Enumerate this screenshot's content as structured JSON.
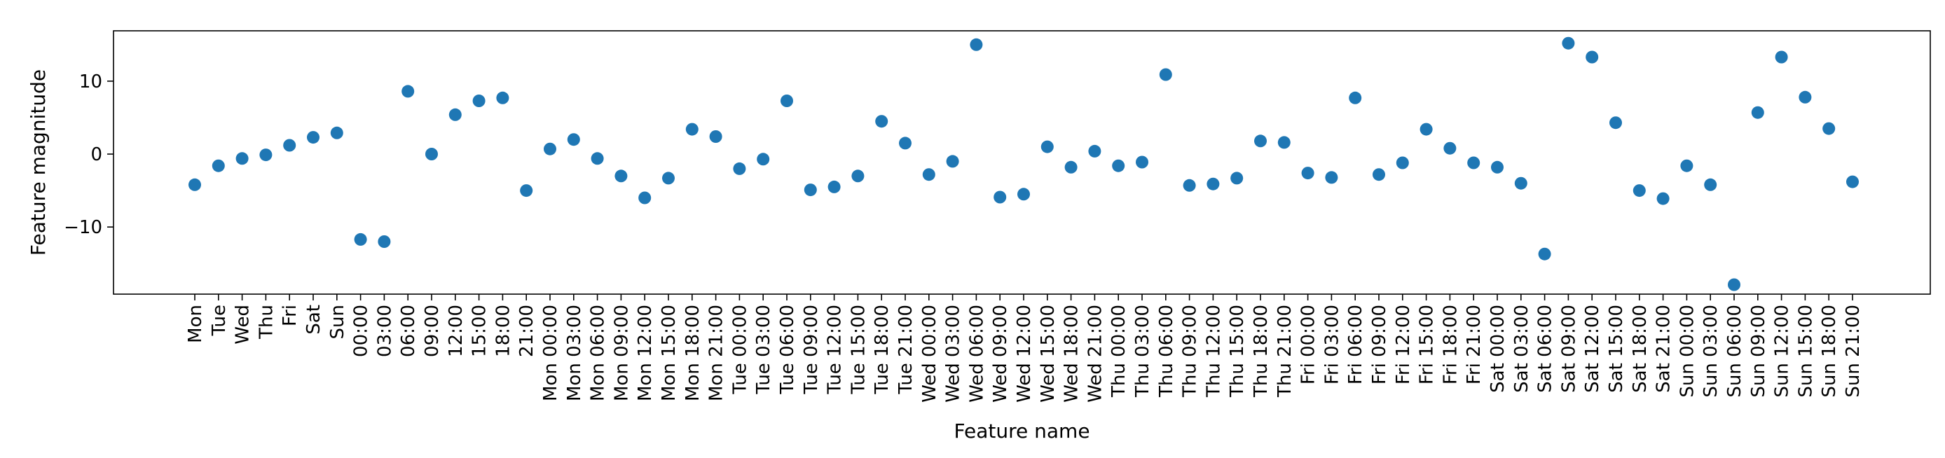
{
  "chart_data": {
    "type": "scatter",
    "xlabel": "Feature name",
    "ylabel": "Feature magnitude",
    "categories": [
      "Mon",
      "Tue",
      "Wed",
      "Thu",
      "Fri",
      "Sat",
      "Sun",
      "00:00",
      "03:00",
      "06:00",
      "09:00",
      "12:00",
      "15:00",
      "18:00",
      "21:00",
      "Mon 00:00",
      "Mon 03:00",
      "Mon 06:00",
      "Mon 09:00",
      "Mon 12:00",
      "Mon 15:00",
      "Mon 18:00",
      "Mon 21:00",
      "Tue 00:00",
      "Tue 03:00",
      "Tue 06:00",
      "Tue 09:00",
      "Tue 12:00",
      "Tue 15:00",
      "Tue 18:00",
      "Tue 21:00",
      "Wed 00:00",
      "Wed 03:00",
      "Wed 06:00",
      "Wed 09:00",
      "Wed 12:00",
      "Wed 15:00",
      "Wed 18:00",
      "Wed 21:00",
      "Thu 00:00",
      "Thu 03:00",
      "Thu 06:00",
      "Thu 09:00",
      "Thu 12:00",
      "Thu 15:00",
      "Thu 18:00",
      "Thu 21:00",
      "Fri 00:00",
      "Fri 03:00",
      "Fri 06:00",
      "Fri 09:00",
      "Fri 12:00",
      "Fri 15:00",
      "Fri 18:00",
      "Fri 21:00",
      "Sat 00:00",
      "Sat 03:00",
      "Sat 06:00",
      "Sat 09:00",
      "Sat 12:00",
      "Sat 15:00",
      "Sat 18:00",
      "Sat 21:00",
      "Sun 00:00",
      "Sun 03:00",
      "Sun 06:00",
      "Sun 09:00",
      "Sun 12:00",
      "Sun 15:00",
      "Sun 18:00",
      "Sun 21:00"
    ],
    "values": [
      -4.2,
      -1.6,
      -0.6,
      -0.1,
      1.2,
      2.3,
      2.9,
      -11.7,
      -12.0,
      8.6,
      0.0,
      5.4,
      7.3,
      7.7,
      -5.0,
      0.7,
      2.0,
      -0.6,
      -3.0,
      -6.0,
      -3.3,
      3.4,
      2.4,
      -2.0,
      -0.7,
      7.3,
      -4.9,
      -4.5,
      -3.0,
      4.5,
      1.5,
      -2.8,
      -1.0,
      15.0,
      -5.9,
      -5.5,
      1.0,
      -1.8,
      0.4,
      -1.6,
      -1.1,
      10.9,
      -4.3,
      -4.1,
      -3.3,
      1.8,
      1.6,
      -2.6,
      -3.2,
      7.7,
      -2.8,
      -1.2,
      3.4,
      0.8,
      -1.2,
      -1.8,
      -4.0,
      -13.7,
      15.2,
      13.3,
      4.3,
      -5.0,
      -6.1,
      -1.6,
      -4.2,
      -17.9,
      5.7,
      13.3,
      7.8,
      3.5,
      -3.8
    ],
    "ylim": [
      -19.2,
      16.9
    ],
    "yticks": [
      10,
      0,
      -10
    ],
    "ytick_labels": [
      "10",
      "0",
      "−10"
    ],
    "grid": false,
    "marker_color": "#1f77b4"
  }
}
